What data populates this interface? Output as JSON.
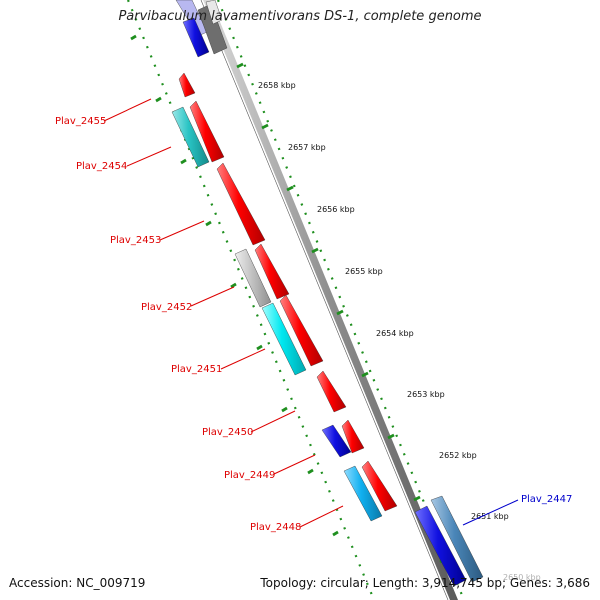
{
  "title": "Parvibaculum lavamentivorans DS-1, complete genome",
  "footer": {
    "accession": "Accession: NC_009719",
    "summary": "Topology: circular; Length: 3,914,745 bp; Genes: 3,686"
  },
  "colors": {
    "red_gene": "#ff0000",
    "teal_gene": "#29c4c4",
    "cyan_gene": "#00e8f0",
    "gray_gene": "#c4c4c4",
    "blue_gene": "#1010e0",
    "steel_gene": "#4a86b8",
    "skyblue_gene": "#10b0f0",
    "backbone": "#8e8e8e",
    "tick_green": "#1f8f1f",
    "label_red": "#dd0000",
    "label_blue": "#0000cc"
  },
  "genes_left": [
    {
      "label": "Plav_2455",
      "color": "red"
    },
    {
      "label": "Plav_2454",
      "color": "red"
    },
    {
      "label": "Plav_2453",
      "color": "red"
    },
    {
      "label": "Plav_2452",
      "color": "red"
    },
    {
      "label": "Plav_2451",
      "color": "red"
    },
    {
      "label": "Plav_2450",
      "color": "red"
    },
    {
      "label": "Plav_2449",
      "color": "red"
    },
    {
      "label": "Plav_2448",
      "color": "red"
    }
  ],
  "genes_right": [
    {
      "label": "Plav_2447",
      "color": "blue"
    }
  ],
  "kbp_ticks": [
    "2658 kbp",
    "2657 kbp",
    "2656 kbp",
    "2655 kbp",
    "2654 kbp",
    "2653 kbp",
    "2652 kbp",
    "2651 kbp",
    "2650 kbp"
  ]
}
